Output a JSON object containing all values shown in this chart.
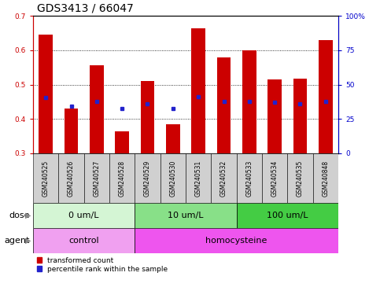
{
  "title": "GDS3413 / 66047",
  "samples": [
    "GSM240525",
    "GSM240526",
    "GSM240527",
    "GSM240528",
    "GSM240529",
    "GSM240530",
    "GSM240531",
    "GSM240532",
    "GSM240533",
    "GSM240534",
    "GSM240535",
    "GSM240848"
  ],
  "transformed_count": [
    0.645,
    0.43,
    0.555,
    0.365,
    0.51,
    0.385,
    0.663,
    0.58,
    0.6,
    0.515,
    0.518,
    0.63
  ],
  "percentile_rank": [
    0.463,
    0.438,
    0.45,
    0.43,
    0.445,
    0.43,
    0.465,
    0.45,
    0.45,
    0.448,
    0.445,
    0.452
  ],
  "ylim_left": [
    0.3,
    0.7
  ],
  "ylim_right": [
    0,
    100
  ],
  "yticks_left": [
    0.3,
    0.4,
    0.5,
    0.6,
    0.7
  ],
  "yticks_right": [
    0,
    25,
    50,
    75,
    100
  ],
  "ytick_right_labels": [
    "0",
    "25",
    "50",
    "75",
    "100%"
  ],
  "bar_color": "#cc0000",
  "dot_color": "#2222cc",
  "bar_bottom": 0.3,
  "dose_groups": [
    {
      "label": "0 um/L",
      "start": 0,
      "end": 4,
      "color": "#d4f5d4"
    },
    {
      "label": "10 um/L",
      "start": 4,
      "end": 8,
      "color": "#88e088"
    },
    {
      "label": "100 um/L",
      "start": 8,
      "end": 12,
      "color": "#44cc44"
    }
  ],
  "agent_groups": [
    {
      "label": "control",
      "start": 0,
      "end": 4,
      "color": "#f0a0f0"
    },
    {
      "label": "homocysteine",
      "start": 4,
      "end": 12,
      "color": "#ee55ee"
    }
  ],
  "dose_label": "dose",
  "agent_label": "agent",
  "legend_items": [
    {
      "label": "transformed count",
      "color": "#cc0000"
    },
    {
      "label": "percentile rank within the sample",
      "color": "#2222cc"
    }
  ],
  "bg_color": "#ffffff",
  "tick_bg_color": "#d0d0d0",
  "title_fontsize": 10,
  "tick_fontsize": 6.5,
  "label_fontsize": 8,
  "group_fontsize": 8
}
